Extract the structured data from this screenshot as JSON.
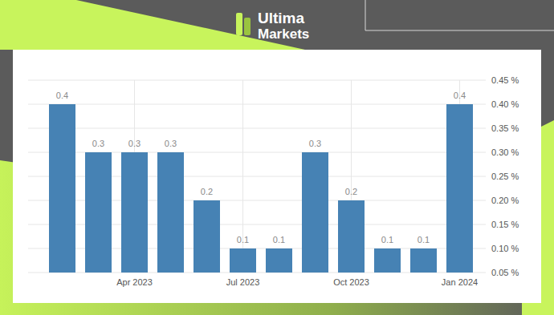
{
  "brand": [
    "Ultima",
    "Markets"
  ],
  "chart_data": {
    "type": "bar",
    "categories": [
      null,
      null,
      "Apr 2023",
      null,
      null,
      "Jul 2023",
      null,
      null,
      "Oct 2023",
      null,
      null,
      "Jan 2024"
    ],
    "values": [
      0.4,
      0.3,
      0.3,
      0.3,
      0.2,
      0.1,
      0.1,
      0.3,
      0.2,
      0.1,
      0.1,
      0.4
    ],
    "color": "#4682b4",
    "ylim": [
      0.05,
      0.45
    ],
    "yticks": [
      {
        "value": 0.05,
        "label": "0.05 %"
      },
      {
        "value": 0.1,
        "label": "0.10 %"
      },
      {
        "value": 0.15,
        "label": "0.15 %"
      },
      {
        "value": 0.2,
        "label": "0.20 %"
      },
      {
        "value": 0.25,
        "label": "0.25 %"
      },
      {
        "value": 0.3,
        "label": "0.30 %"
      },
      {
        "value": 0.35,
        "label": "0.35 %"
      },
      {
        "value": 0.4,
        "label": "0.40 %"
      },
      {
        "value": 0.45,
        "label": "0.45 %"
      }
    ],
    "grid": true,
    "data_labels": true
  }
}
